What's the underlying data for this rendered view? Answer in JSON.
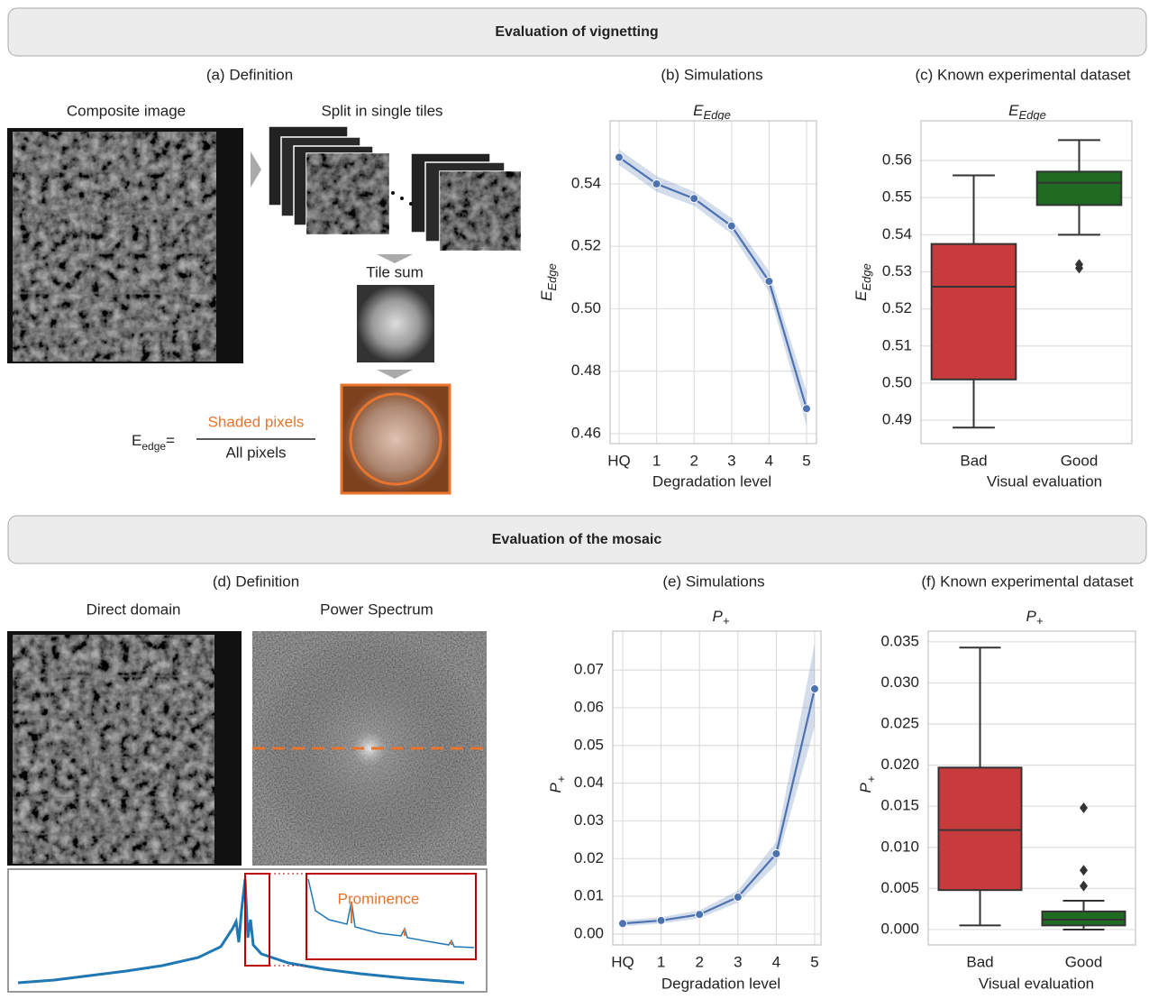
{
  "sections": [
    {
      "title": "Evaluation of vignetting"
    },
    {
      "title": "Evaluation of the mosaic"
    }
  ],
  "panel_a": {
    "caption": "(a) Definition",
    "composite_label": "Composite image",
    "split_label": "Split in single tiles",
    "sum_label": "Tile sum",
    "formula": {
      "lhs": "E",
      "lhs_sub": "edge",
      "equals": "=",
      "numerator": "Shaded pixels",
      "denominator": "All pixels"
    }
  },
  "panel_d": {
    "caption": "(d) Definition",
    "direct_label": "Direct domain",
    "spectrum_label": "Power Spectrum",
    "annotation": "Prominence"
  },
  "chart_data": [
    {
      "type": "line",
      "caption": "(b) Simulations",
      "title": "E",
      "title_sub": "Edge",
      "xlabel": "Degradation level",
      "ylabel": "E",
      "ylabel_sub": "Edge",
      "categories": [
        "HQ",
        "1",
        "2",
        "3",
        "4",
        "5"
      ],
      "color": "#4c72b0",
      "values": [
        0.5485,
        0.54,
        0.5353,
        0.5265,
        0.5088,
        0.468
      ],
      "ci_upper": [
        0.551,
        0.5425,
        0.5375,
        0.529,
        0.512,
        0.4735
      ],
      "ci_lower": [
        0.546,
        0.5375,
        0.533,
        0.524,
        0.5055,
        0.4625
      ],
      "ylim": [
        0.4568,
        0.5602
      ],
      "yticks": [
        0.46,
        0.48,
        {
          "value": 0.5,
          "label": "0.50"
        },
        0.52,
        0.54
      ],
      "grid": true
    },
    {
      "type": "box",
      "caption": "(c) Known experimental dataset",
      "title": "E",
      "title_sub": "Edge",
      "xlabel": "Visual evaluation",
      "ylabel": "E",
      "ylabel_sub": "Edge",
      "categories": [
        "Bad",
        "Good"
      ],
      "colors": [
        "#c73b3c",
        "#1f6b21"
      ],
      "boxes": [
        {
          "whisker_low": 0.488,
          "q1": 0.501,
          "median": 0.526,
          "q3": 0.5375,
          "whisker_high": 0.556,
          "outliers": []
        },
        {
          "whisker_low": 0.54,
          "q1": 0.548,
          "median": 0.554,
          "q3": 0.557,
          "whisker_high": 0.5655,
          "outliers": [
            0.532,
            0.531
          ]
        }
      ],
      "ylim": [
        0.4837,
        0.5707
      ],
      "yticks": [
        0.49,
        {
          "value": 0.5,
          "label": "0.50"
        },
        0.51,
        0.52,
        0.53,
        0.54,
        0.55,
        0.56
      ],
      "grid": true
    },
    {
      "type": "line",
      "caption": "(e) Simulations",
      "title": "P",
      "title_sub": "+",
      "xlabel": "Degradation level",
      "ylabel": "P",
      "ylabel_sub": "+",
      "categories": [
        "HQ",
        "1",
        "2",
        "3",
        "4",
        "5"
      ],
      "color": "#4c72b0",
      "values": [
        0.0028,
        0.0036,
        0.0052,
        0.0098,
        0.0213,
        0.065
      ],
      "ci_upper": [
        0.0036,
        0.0045,
        0.0063,
        0.0115,
        0.0245,
        0.077
      ],
      "ci_lower": [
        0.0021,
        0.0028,
        0.0042,
        0.0083,
        0.0185,
        0.055
      ],
      "ylim": [
        -0.00287,
        0.0803
      ],
      "yticks": [
        {
          "value": 0,
          "label": "0.00"
        },
        0.01,
        0.02,
        0.03,
        0.04,
        0.05,
        0.06,
        0.07
      ],
      "grid": true
    },
    {
      "type": "box",
      "caption": "(f) Known experimental dataset",
      "title": "P",
      "title_sub": "+",
      "xlabel": "Visual evaluation",
      "ylabel": "P",
      "ylabel_sub": "+",
      "categories": [
        "Bad",
        "Good"
      ],
      "colors": [
        "#c73b3c",
        "#1f6b21"
      ],
      "boxes": [
        {
          "whisker_low": 0.0005,
          "q1": 0.0048,
          "median": 0.0121,
          "q3": 0.0197,
          "whisker_high": 0.0343,
          "outliers": []
        },
        {
          "whisker_low": 0.0,
          "q1": 0.0005,
          "median": 0.0012,
          "q3": 0.0022,
          "whisker_high": 0.0035,
          "outliers": [
            0.0148,
            0.0072,
            0.0053
          ]
        }
      ],
      "ylim": [
        -0.00187,
        0.0363
      ],
      "yticks": [
        {
          "value": 0,
          "label": "0.000"
        },
        0.005,
        {
          "value": 0.01,
          "label": "0.010"
        },
        0.015,
        {
          "value": 0.02,
          "label": "0.020"
        },
        0.025,
        {
          "value": 0.03,
          "label": "0.030"
        },
        0.035
      ],
      "grid": true
    }
  ]
}
